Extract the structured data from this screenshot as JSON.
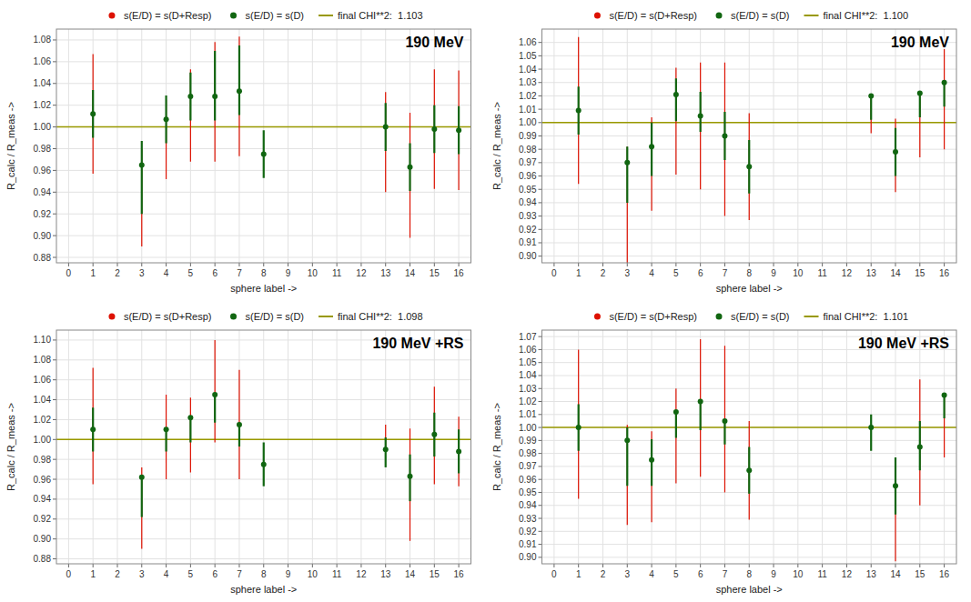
{
  "chart_data": [
    {
      "type": "scatter",
      "title": "190 MeV",
      "xlabel": "sphere label ->",
      "ylabel": "R_calc / R_meas ->",
      "xlim": [
        -0.5,
        16.5
      ],
      "xticks": [
        0,
        1,
        2,
        3,
        4,
        5,
        6,
        7,
        8,
        9,
        10,
        11,
        12,
        13,
        14,
        15,
        16
      ],
      "ylim": [
        0.875,
        1.09
      ],
      "yticks": [
        0.88,
        {
          "value": 0.9,
          "label": "0.90"
        },
        0.92,
        0.94,
        0.96,
        0.98,
        {
          "value": 1.0,
          "label": "1.00"
        },
        1.02,
        1.04,
        1.06,
        1.08
      ],
      "grid": true,
      "legend": "top",
      "series": [
        {
          "name": "s(E/D) = s(D+Resp)",
          "type": "errorbar",
          "color": "#dd1100",
          "x": [
            1,
            3,
            4,
            5,
            6,
            7,
            13,
            14,
            15,
            16
          ],
          "values": [
            1.012,
            0.965,
            1.007,
            1.028,
            1.028,
            1.033,
            1.0,
            0.963,
            0.998,
            0.997
          ],
          "error_lo": [
            0.055,
            0.075,
            0.055,
            0.06,
            0.06,
            0.06,
            0.06,
            0.065,
            0.055,
            0.055
          ],
          "error_hi": [
            0.055,
            0.015,
            0.018,
            0.025,
            0.05,
            0.05,
            0.032,
            0.05,
            0.055,
            0.055
          ]
        },
        {
          "name": "s(E/D) = s(D)",
          "color": "#116611",
          "x": [
            1,
            3,
            4,
            5,
            6,
            7,
            8,
            13,
            14,
            15,
            16
          ],
          "values": [
            1.012,
            0.965,
            1.007,
            1.028,
            1.028,
            1.033,
            0.975,
            1.0,
            0.963,
            0.998,
            0.997
          ],
          "error_lo": [
            0.022,
            0.045,
            0.022,
            0.022,
            0.022,
            0.022,
            0.022,
            0.022,
            0.022,
            0.022,
            0.022
          ],
          "error_hi": [
            0.022,
            0.022,
            0.022,
            0.022,
            0.042,
            0.042,
            0.022,
            0.022,
            0.022,
            0.022,
            0.022
          ]
        },
        {
          "name": "final CHI**2:  1.103",
          "type": "hline",
          "color": "#999900",
          "values": [
            1.0
          ]
        }
      ]
    },
    {
      "type": "scatter",
      "title": "190 MeV",
      "xlabel": "sphere label ->",
      "ylabel": "R_calc / R_meas ->",
      "xlim": [
        -0.5,
        16.5
      ],
      "xticks": [
        0,
        1,
        2,
        3,
        4,
        5,
        6,
        7,
        8,
        9,
        10,
        11,
        12,
        13,
        14,
        15,
        16
      ],
      "ylim": [
        0.895,
        1.07
      ],
      "yticks": [
        {
          "value": 0.9,
          "label": "0.90"
        },
        0.91,
        0.92,
        0.93,
        0.94,
        0.95,
        0.96,
        0.97,
        0.98,
        0.99,
        {
          "value": 1.0,
          "label": "1.00"
        },
        1.01,
        1.02,
        1.03,
        1.04,
        1.05,
        1.06
      ],
      "grid": true,
      "legend": "top",
      "series": [
        {
          "name": "s(E/D) = s(D+Resp)",
          "type": "errorbar",
          "color": "#dd1100",
          "x": [
            1,
            3,
            4,
            5,
            6,
            7,
            8,
            13,
            14,
            15,
            16
          ],
          "values": [
            1.009,
            0.97,
            0.982,
            1.021,
            1.005,
            0.99,
            0.967,
            1.02,
            0.978,
            1.022,
            1.03
          ],
          "error_lo": [
            0.055,
            0.075,
            0.048,
            0.06,
            0.055,
            0.06,
            0.04,
            0.028,
            0.03,
            0.048,
            0.05
          ],
          "error_hi": [
            0.055,
            0.012,
            0.022,
            0.02,
            0.04,
            0.055,
            0.04,
            0.0,
            0.025,
            0.0,
            0.025
          ]
        },
        {
          "name": "s(E/D) = s(D)",
          "color": "#116611",
          "x": [
            1,
            3,
            4,
            5,
            6,
            7,
            8,
            13,
            14,
            15,
            16
          ],
          "values": [
            1.009,
            0.97,
            0.982,
            1.021,
            1.005,
            0.99,
            0.967,
            1.02,
            0.978,
            1.022,
            1.03
          ],
          "error_lo": [
            0.018,
            0.03,
            0.022,
            0.02,
            0.012,
            0.018,
            0.02,
            0.018,
            0.018,
            0.018,
            0.018
          ],
          "error_hi": [
            0.018,
            0.012,
            0.018,
            0.012,
            0.018,
            0.018,
            0.02,
            0.0,
            0.018,
            0.0,
            0.0
          ]
        },
        {
          "name": "final CHI**2:  1.100",
          "type": "hline",
          "color": "#999900",
          "values": [
            1.0
          ]
        }
      ]
    },
    {
      "type": "scatter",
      "title": "190 MeV +RS",
      "xlabel": "sphere label ->",
      "ylabel": "R_calc / R_meas ->",
      "xlim": [
        -0.5,
        16.5
      ],
      "xticks": [
        0,
        1,
        2,
        3,
        4,
        5,
        6,
        7,
        8,
        9,
        10,
        11,
        12,
        13,
        14,
        15,
        16
      ],
      "ylim": [
        0.875,
        1.11
      ],
      "yticks": [
        0.88,
        {
          "value": 0.9,
          "label": "0.90"
        },
        0.92,
        0.94,
        0.96,
        0.98,
        {
          "value": 1.0,
          "label": "1.00"
        },
        1.02,
        1.04,
        1.06,
        1.08,
        {
          "value": 1.1,
          "label": "1.10"
        }
      ],
      "grid": true,
      "legend": "top",
      "series": [
        {
          "name": "s(E/D) = s(D+Resp)",
          "type": "errorbar",
          "color": "#dd1100",
          "x": [
            1,
            3,
            4,
            5,
            6,
            7,
            13,
            14,
            15,
            16
          ],
          "values": [
            1.01,
            0.962,
            1.01,
            1.022,
            1.045,
            1.015,
            0.99,
            0.963,
            1.005,
            0.988
          ],
          "error_lo": [
            0.055,
            0.072,
            0.05,
            0.055,
            0.048,
            0.055,
            0.0,
            0.065,
            0.05,
            0.035
          ],
          "error_hi": [
            0.062,
            0.01,
            0.035,
            0.02,
            0.055,
            0.055,
            0.025,
            0.048,
            0.048,
            0.035
          ]
        },
        {
          "name": "s(E/D) = s(D)",
          "color": "#116611",
          "x": [
            1,
            3,
            4,
            5,
            6,
            7,
            8,
            13,
            14,
            15,
            16
          ],
          "values": [
            1.01,
            0.962,
            1.01,
            1.022,
            1.045,
            1.015,
            0.975,
            0.99,
            0.963,
            1.005,
            0.988
          ],
          "error_lo": [
            0.022,
            0.04,
            0.022,
            0.025,
            0.028,
            0.022,
            0.022,
            0.018,
            0.025,
            0.022,
            0.022
          ],
          "error_hi": [
            0.022,
            0.0,
            0.0,
            0.0,
            0.0,
            0.0,
            0.022,
            0.012,
            0.022,
            0.022,
            0.022
          ]
        },
        {
          "name": "final CHI**2:  1.098",
          "type": "hline",
          "color": "#999900",
          "values": [
            1.0
          ]
        }
      ]
    },
    {
      "type": "scatter",
      "title": "190 MeV +RS",
      "xlabel": "sphere label ->",
      "ylabel": "R_calc / R_meas ->",
      "xlim": [
        -0.5,
        16.5
      ],
      "xticks": [
        0,
        1,
        2,
        3,
        4,
        5,
        6,
        7,
        8,
        9,
        10,
        11,
        12,
        13,
        14,
        15,
        16
      ],
      "ylim": [
        0.895,
        1.075
      ],
      "yticks": [
        {
          "value": 0.9,
          "label": "0.90"
        },
        0.91,
        0.92,
        0.93,
        0.94,
        0.95,
        0.96,
        0.97,
        0.98,
        0.99,
        {
          "value": 1.0,
          "label": "1.00"
        },
        1.01,
        1.02,
        1.03,
        1.04,
        1.05,
        1.06,
        1.07
      ],
      "grid": true,
      "legend": "top",
      "series": [
        {
          "name": "s(E/D) = s(D+Resp)",
          "type": "errorbar",
          "color": "#dd1100",
          "x": [
            1,
            3,
            4,
            5,
            6,
            7,
            8,
            14,
            15,
            16
          ],
          "values": [
            1.0,
            0.99,
            0.975,
            1.012,
            1.02,
            1.005,
            0.967,
            0.955,
            0.985,
            1.025
          ],
          "error_lo": [
            0.055,
            0.065,
            0.048,
            0.055,
            0.058,
            0.055,
            0.038,
            0.058,
            0.045,
            0.048
          ],
          "error_hi": [
            0.06,
            0.012,
            0.022,
            0.018,
            0.048,
            0.058,
            0.038,
            0.015,
            0.052,
            0.0
          ]
        },
        {
          "name": "s(E/D) = s(D)",
          "color": "#116611",
          "x": [
            1,
            3,
            4,
            5,
            6,
            7,
            8,
            13,
            14,
            15,
            16
          ],
          "values": [
            1.0,
            0.99,
            0.975,
            1.012,
            1.02,
            1.005,
            0.967,
            1.0,
            0.955,
            0.985,
            1.025
          ],
          "error_lo": [
            0.018,
            0.035,
            0.02,
            0.02,
            0.022,
            0.018,
            0.018,
            0.018,
            0.022,
            0.018,
            0.018
          ],
          "error_hi": [
            0.018,
            0.01,
            0.016,
            0.0,
            0.0,
            0.0,
            0.018,
            0.01,
            0.022,
            0.02,
            0.0
          ]
        },
        {
          "name": "final CHI**2:  1.101",
          "type": "hline",
          "color": "#999900",
          "values": [
            1.0
          ]
        }
      ]
    }
  ]
}
